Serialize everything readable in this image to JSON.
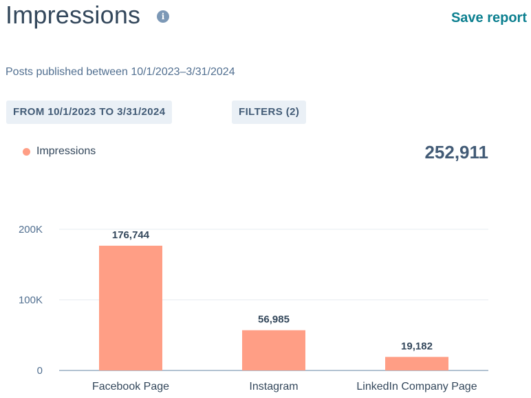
{
  "header": {
    "title": "Impressions",
    "info_icon": "info-icon",
    "save_label": "Save report"
  },
  "subtitle": "Posts published between 10/1/2023–3/31/2024",
  "chips": {
    "date_range": "FROM 10/1/2023 TO 3/31/2024",
    "filters": "FILTERS (2)"
  },
  "legend": {
    "label": "Impressions",
    "total": "252,911"
  },
  "colors": {
    "bar": "#ff9e85",
    "grid": "#e7ecf1",
    "axis": "#99afc4",
    "accent": "#0b7f8f"
  },
  "chart_data": {
    "type": "bar",
    "title": "Impressions",
    "categories": [
      "Facebook Page",
      "Instagram",
      "LinkedIn Company Page"
    ],
    "values": [
      176744,
      56985,
      19182
    ],
    "value_labels": [
      "176,744",
      "56,985",
      "19,182"
    ],
    "ylim": [
      0,
      200000
    ],
    "yticks": [
      0,
      100000,
      200000
    ],
    "ytick_labels": [
      "0",
      "100K",
      "200K"
    ],
    "xlabel": "",
    "ylabel": "",
    "grid": true
  }
}
